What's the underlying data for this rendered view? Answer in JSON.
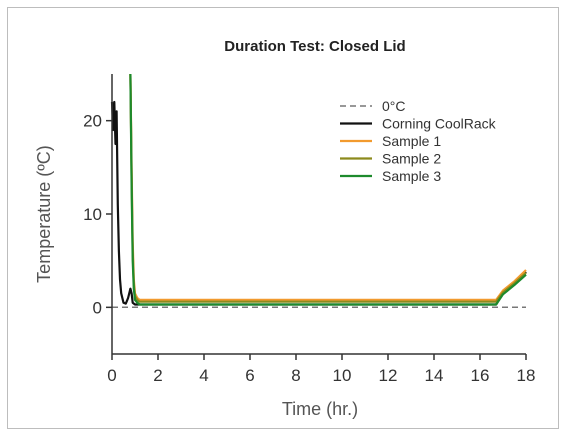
{
  "chart_data": {
    "type": "line",
    "title": "Duration Test: Closed Lid",
    "xlabel": "Time (hr.)",
    "ylabel": "Temperature (ºC)",
    "xlim": [
      0,
      18
    ],
    "ylim": [
      -5,
      25
    ],
    "xticks": [
      "0",
      "2",
      "4",
      "6",
      "8",
      "10",
      "12",
      "14",
      "16",
      "18"
    ],
    "yticks": [
      "0",
      "10",
      "20"
    ],
    "xtick_values": [
      0,
      2,
      4,
      6,
      8,
      10,
      12,
      14,
      16,
      18
    ],
    "ytick_values": [
      0,
      10,
      20
    ],
    "grid": false,
    "legend_position": "top-right",
    "series": [
      {
        "name": "0°C",
        "color": "#777777",
        "dash": true,
        "x": [
          0,
          18
        ],
        "y": [
          0,
          0
        ]
      },
      {
        "name": "Corning CoolRack",
        "color": "#111111",
        "x": [
          0.0,
          0.05,
          0.1,
          0.15,
          0.2,
          0.25,
          0.3,
          0.35,
          0.4,
          0.5,
          0.6,
          0.7,
          0.8,
          0.85,
          0.9,
          1.0,
          1.2,
          2,
          4,
          6,
          8,
          10,
          12,
          14,
          16,
          16.7,
          17.0,
          17.5,
          18.0
        ],
        "y": [
          22,
          19,
          22,
          17.5,
          21,
          11,
          6,
          3,
          1.5,
          0.5,
          0.4,
          1.0,
          2.0,
          1.5,
          0.5,
          0.3,
          0.3,
          0.3,
          0.3,
          0.3,
          0.3,
          0.3,
          0.3,
          0.3,
          0.3,
          0.3,
          1.5,
          2.5,
          3.8
        ]
      },
      {
        "name": "Sample 1",
        "color": "#f29a2e",
        "x": [
          0.8,
          0.85,
          0.9,
          0.95,
          1.0,
          1.1,
          1.2,
          2,
          4,
          6,
          8,
          10,
          12,
          14,
          16,
          16.7,
          17.0,
          17.5,
          18.0
        ],
        "y": [
          25,
          15,
          7,
          3,
          1.5,
          1.0,
          0.8,
          0.8,
          0.8,
          0.8,
          0.8,
          0.8,
          0.8,
          0.8,
          0.8,
          0.8,
          1.8,
          2.8,
          4.0
        ]
      },
      {
        "name": "Sample 2",
        "color": "#8c8a1c",
        "x": [
          0.8,
          0.85,
          0.9,
          0.95,
          1.0,
          1.1,
          1.2,
          2,
          4,
          6,
          8,
          10,
          12,
          14,
          16,
          16.7,
          17.0,
          17.5,
          18.0
        ],
        "y": [
          25,
          14,
          6,
          2.5,
          1.2,
          0.8,
          0.6,
          0.6,
          0.6,
          0.6,
          0.6,
          0.6,
          0.6,
          0.6,
          0.6,
          0.6,
          1.6,
          2.6,
          3.7
        ]
      },
      {
        "name": "Sample 3",
        "color": "#1d8a2c",
        "x": [
          0.8,
          0.85,
          0.9,
          0.95,
          1.0,
          1.1,
          1.2,
          2,
          4,
          6,
          8,
          10,
          12,
          14,
          16,
          16.7,
          17.0,
          17.5,
          18.0
        ],
        "y": [
          25,
          13,
          5,
          2,
          0.8,
          0.5,
          0.3,
          0.3,
          0.3,
          0.3,
          0.3,
          0.3,
          0.3,
          0.3,
          0.3,
          0.3,
          1.4,
          2.4,
          3.5
        ]
      }
    ]
  }
}
